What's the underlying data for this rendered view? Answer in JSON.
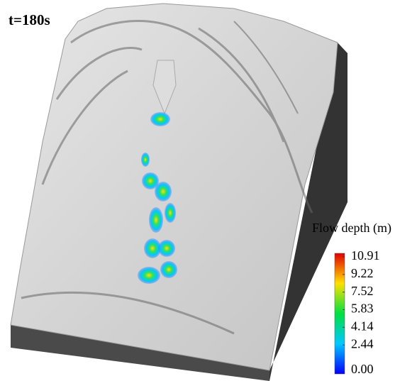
{
  "time_label": "t=180s",
  "colorbar": {
    "title": "Flow depth (m)",
    "lim": [
      0,
      10.91
    ],
    "ticks": [
      {
        "value": 0,
        "label": "0.00"
      },
      2.44,
      4.14,
      5.83,
      7.52,
      9.22,
      10.91
    ]
  }
}
